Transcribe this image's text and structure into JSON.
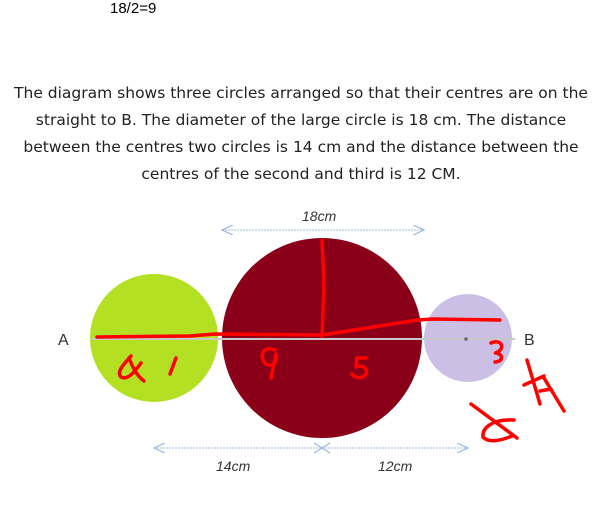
{
  "calculation": "18/2=9",
  "problem_text": "The diagram shows three circles arranged so that their centres are on the straight to B. The diameter of the large circle is 18 cm. The distance between the centres two circles is 14 cm and the distance between the centres of the second and third is 12 CM.",
  "diagram": {
    "point_a": "A",
    "point_b": "B",
    "diameter_label": "18cm",
    "left_distance_label": "14cm",
    "right_distance_label": "12cm",
    "colors": {
      "small_circle": "#b4e023",
      "large_circle": "#8b0019",
      "third_circle": "#cbbfe6",
      "arrows": "#9bb8e2",
      "annotation": "#ff0000"
    }
  }
}
